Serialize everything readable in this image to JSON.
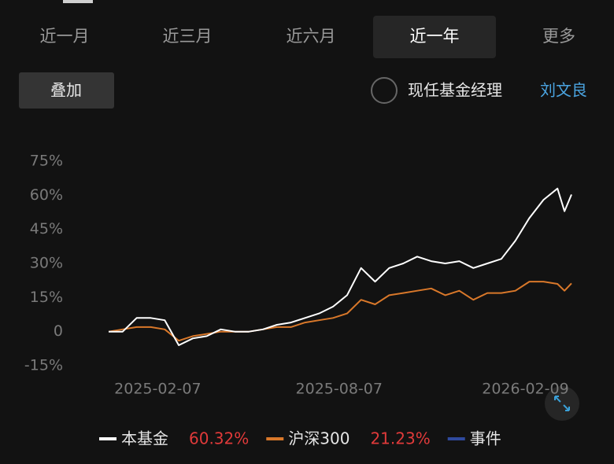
{
  "tabs": [
    "近一月",
    "近三月",
    "近六月",
    "近一年",
    "更多"
  ],
  "selected_tab": 3,
  "overlay_button": "叠加",
  "manager_label": "现任基金经理",
  "manager_name": "刘文良",
  "chart_data": {
    "type": "line",
    "x": [
      "2024-12-20",
      "2025-01-03",
      "2025-01-17",
      "2025-01-31",
      "2025-02-14",
      "2025-02-28",
      "2025-03-14",
      "2025-03-28",
      "2025-04-11",
      "2025-04-25",
      "2025-05-09",
      "2025-05-23",
      "2025-06-06",
      "2025-06-20",
      "2025-07-04",
      "2025-07-18",
      "2025-08-01",
      "2025-08-15",
      "2025-08-29",
      "2025-09-12",
      "2025-09-26",
      "2025-10-10",
      "2025-10-24",
      "2025-11-07",
      "2025-11-21",
      "2025-12-05",
      "2025-12-19",
      "2026-01-02",
      "2026-01-16",
      "2026-01-30",
      "2026-02-13",
      "2026-02-27",
      "2026-03-13",
      "2026-03-20",
      "2026-03-27"
    ],
    "xlim": [
      "2024-12-20",
      "2026-03-27"
    ],
    "xticks": [
      "2025-02-07",
      "2025-08-07",
      "2026-02-09"
    ],
    "ylim": [
      -15,
      75
    ],
    "yticks": [
      {
        "value": -15,
        "label": "-15%"
      },
      0,
      {
        "value": 15,
        "label": "15%"
      },
      {
        "value": 30,
        "label": "30%"
      },
      {
        "value": 45,
        "label": "45%"
      },
      {
        "value": 60,
        "label": "60%"
      },
      {
        "value": 75,
        "label": "75%"
      }
    ],
    "grid": false,
    "series": [
      {
        "name": "本基金",
        "color": "#ffffff",
        "return": "60.32%",
        "values": [
          0,
          0,
          6,
          6,
          5,
          -6,
          -3,
          -2,
          1,
          0,
          0,
          1,
          3,
          4,
          6,
          8,
          11,
          16,
          28,
          22,
          28,
          30,
          33,
          31,
          30,
          31,
          28,
          30,
          32,
          40,
          50,
          58,
          63,
          53,
          60.32
        ]
      },
      {
        "name": "沪深300",
        "color": "#d9782a",
        "return": "21.23%",
        "values": [
          0,
          1,
          2,
          2,
          1,
          -4,
          -2,
          -1,
          0,
          0,
          0,
          1,
          2,
          2,
          4,
          5,
          6,
          8,
          14,
          12,
          16,
          17,
          18,
          19,
          16,
          18,
          14,
          17,
          17,
          18,
          22,
          22,
          21,
          18,
          21.23
        ]
      }
    ],
    "event_legend": {
      "name": "事件",
      "color": "#2f4a9e"
    }
  }
}
